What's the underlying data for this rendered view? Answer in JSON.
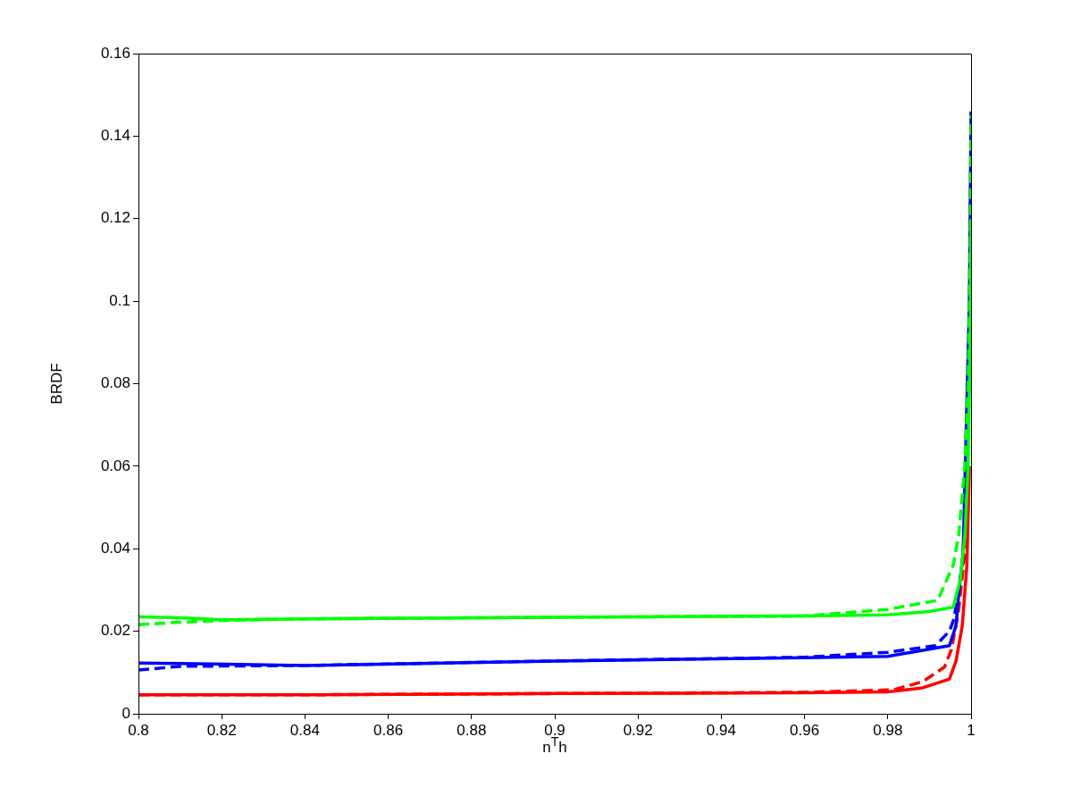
{
  "chart_data": {
    "type": "line",
    "xlabel": "n$^{T}$h",
    "ylabel": "BRDF",
    "xlim": [
      0.8,
      1
    ],
    "ylim": [
      0,
      0.16
    ],
    "xticks": [
      0.8,
      0.82,
      0.84,
      0.86,
      0.88,
      0.9,
      0.92,
      0.94,
      0.96,
      0.98,
      1
    ],
    "yticks": [
      0,
      0.02,
      0.04,
      0.06,
      0.08,
      0.1,
      0.12,
      0.14,
      0.16
    ],
    "grid": false,
    "legend": false,
    "marker": "none",
    "series": [
      {
        "color": "#00ff00",
        "line_style": "solid",
        "x": [
          0.8,
          0.81,
          0.82,
          0.84,
          0.9,
          0.96,
          0.98,
          0.99,
          0.9957,
          0.9974,
          0.9985,
          0.9993,
          0.9998,
          1
        ],
        "values": [
          0.0235,
          0.0233,
          0.0228,
          0.023,
          0.0234,
          0.0237,
          0.024,
          0.0248,
          0.0258,
          0.0323,
          0.043,
          0.06,
          0.09,
          0.12
        ]
      },
      {
        "color": "#00ff00",
        "line_style": "dashed",
        "x": [
          0.8,
          0.81,
          0.82,
          0.84,
          0.9,
          0.96,
          0.98,
          0.992,
          0.9957,
          0.997,
          0.9985,
          0.9993,
          0.9998,
          1
        ],
        "values": [
          0.0216,
          0.0222,
          0.0226,
          0.023,
          0.0234,
          0.0237,
          0.0253,
          0.0275,
          0.036,
          0.043,
          0.06,
          0.08,
          0.11,
          0.145
        ]
      },
      {
        "color": "#0000ff",
        "line_style": "solid",
        "x": [
          0.8,
          0.81,
          0.84,
          0.9,
          0.96,
          0.98,
          0.9948,
          0.9964,
          0.997,
          0.9981,
          0.9996,
          1
        ],
        "values": [
          0.0123,
          0.0122,
          0.0117,
          0.0128,
          0.0136,
          0.0139,
          0.0165,
          0.0214,
          0.0286,
          0.039,
          0.1,
          0.146
        ]
      },
      {
        "color": "#0000ff",
        "line_style": "dashed",
        "x": [
          0.8,
          0.81,
          0.84,
          0.9,
          0.96,
          0.98,
          0.9914,
          0.9948,
          0.9959,
          0.9979,
          0.999,
          0.9996,
          1
        ],
        "values": [
          0.0106,
          0.0115,
          0.0117,
          0.0128,
          0.0137,
          0.0149,
          0.0165,
          0.02,
          0.023,
          0.036,
          0.055,
          0.09,
          0.14
        ]
      },
      {
        "color": "#ff0000",
        "line_style": "solid",
        "x": [
          0.8,
          0.84,
          0.9,
          0.96,
          0.98,
          0.9884,
          0.9948,
          0.9964,
          0.9979,
          0.999,
          0.9996
        ],
        "values": [
          0.0046,
          0.0046,
          0.0049,
          0.0051,
          0.0053,
          0.0063,
          0.0084,
          0.0128,
          0.0214,
          0.036,
          0.06
        ]
      },
      {
        "color": "#ff0000",
        "line_style": "dashed",
        "x": [
          0.8,
          0.84,
          0.9,
          0.96,
          0.9813,
          0.9884,
          0.9936,
          0.9953,
          0.997,
          0.9985,
          0.9994
        ],
        "values": [
          0.0046,
          0.0046,
          0.0049,
          0.0052,
          0.0058,
          0.0078,
          0.0113,
          0.0156,
          0.025,
          0.039,
          0.06
        ]
      }
    ]
  }
}
